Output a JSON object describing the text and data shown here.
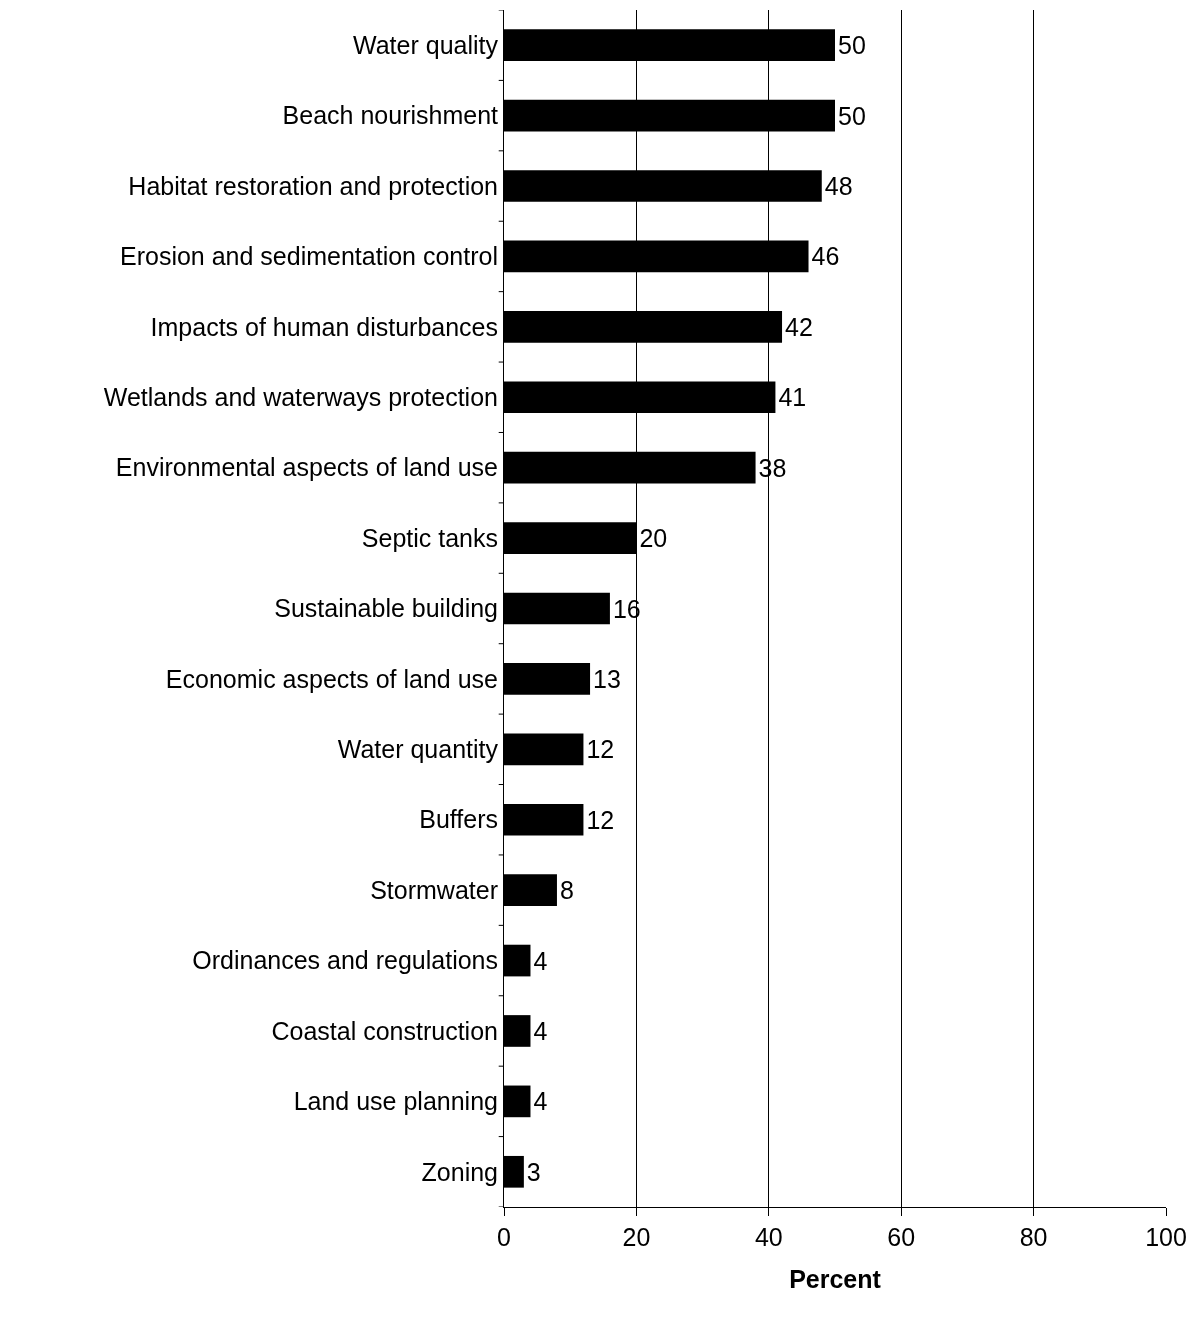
{
  "chart_data": {
    "type": "bar",
    "orientation": "horizontal",
    "xlabel": "Percent",
    "categories": [
      "Water quality",
      "Beach nourishment",
      "Habitat restoration and protection",
      "Erosion and sedimentation control",
      "Impacts of human disturbances",
      "Wetlands and waterways protection",
      "Environmental aspects of land use",
      "Septic tanks",
      "Sustainable building",
      "Economic aspects of land use",
      "Water quantity",
      "Buffers",
      "Stormwater",
      "Ordinances and regulations",
      "Coastal construction",
      "Land use planning",
      "Zoning"
    ],
    "values": [
      50,
      50,
      48,
      46,
      42,
      41,
      38,
      20,
      16,
      13,
      12,
      12,
      8,
      4,
      4,
      4,
      3
    ],
    "color": "#000000",
    "xlim": [
      0,
      100
    ],
    "xticks": [
      0,
      20,
      40,
      60,
      80,
      100
    ],
    "grid": "x",
    "data_labels": true,
    "legend": false
  }
}
